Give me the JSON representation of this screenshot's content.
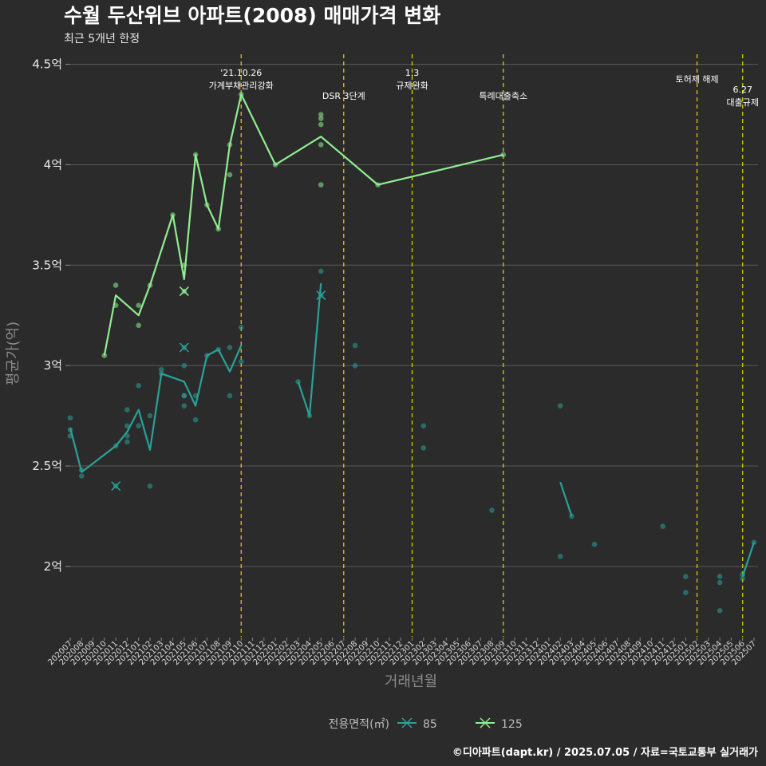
{
  "chart_data": {
    "type": "line",
    "title": "수월 두산위브 아파트(2008) 매매가격 변화",
    "subtitle": "최근 5개년 한정",
    "xlabel": "거래년월",
    "ylabel": "평균가(억)",
    "ylim": [
      1.65,
      4.55
    ],
    "yticks": [
      {
        "value": 2.0,
        "label": "2억"
      },
      {
        "value": 2.5,
        "label": "2.5억"
      },
      {
        "value": 3.0,
        "label": "3억"
      },
      {
        "value": 3.5,
        "label": "3.5억"
      },
      {
        "value": 4.0,
        "label": "4억"
      },
      {
        "value": 4.5,
        "label": "4.5억"
      }
    ],
    "categories": [
      "202007",
      "202008",
      "202009",
      "202010",
      "202011",
      "202012",
      "202101",
      "202102",
      "202103",
      "202104",
      "202105",
      "202106",
      "202107",
      "202108",
      "202109",
      "202110",
      "202111",
      "202112",
      "202201",
      "202202",
      "202203",
      "202204",
      "202205",
      "202206",
      "202207",
      "202208",
      "202209",
      "202210",
      "202211",
      "202212",
      "202301",
      "202302",
      "202303",
      "202304",
      "202305",
      "202306",
      "202307",
      "202308",
      "202309",
      "202310",
      "202311",
      "202312",
      "202401",
      "202402",
      "202403",
      "202404",
      "202405",
      "202406",
      "202407",
      "202408",
      "202409",
      "202410",
      "202411",
      "202412",
      "202501",
      "202502",
      "202503",
      "202504",
      "202505",
      "202506",
      "202507"
    ],
    "events": [
      {
        "month": "202110",
        "label": "'21.10.26\n가계부채관리강화"
      },
      {
        "month": "202207",
        "label": "DSR 3단계"
      },
      {
        "month": "202301",
        "label": "1.3\n규제완화"
      },
      {
        "month": "202309",
        "label": "특례대출축소"
      },
      {
        "month": "202502",
        "label": "토허제 해제"
      },
      {
        "month": "202506",
        "label": "6.27\n대출규제"
      }
    ],
    "legend": {
      "title": "전용면적(㎡)",
      "position": "bottom"
    },
    "series": [
      {
        "name": "85",
        "color": "#2aa198",
        "line": [
          {
            "segment": [
              [
                "202007",
                2.69
              ],
              [
                "202008",
                2.47
              ],
              [
                "202011",
                2.6
              ],
              [
                "202012",
                2.67
              ],
              [
                "202101",
                2.78
              ],
              [
                "202102",
                2.58
              ],
              [
                "202103",
                2.96
              ],
              [
                "202105",
                2.92
              ],
              [
                "202106",
                2.8
              ],
              [
                "202107",
                3.05
              ],
              [
                "202108",
                3.08
              ],
              [
                "202109",
                2.97
              ],
              [
                "202110",
                3.1
              ]
            ]
          },
          {
            "segment": [
              [
                "202203",
                2.92
              ],
              [
                "202204",
                2.75
              ],
              [
                "202205",
                3.41
              ]
            ]
          },
          {
            "segment": [
              [
                "202402",
                2.42
              ],
              [
                "202403",
                2.25
              ]
            ]
          },
          {
            "segment": [
              [
                "202506",
                1.95
              ],
              [
                "202507",
                2.12
              ]
            ]
          }
        ],
        "points": [
          [
            "202007",
            2.74
          ],
          [
            "202007",
            2.65
          ],
          [
            "202007",
            2.68
          ],
          [
            "202008",
            2.45
          ],
          [
            "202008",
            2.48
          ],
          [
            "202011",
            2.6
          ],
          [
            "202012",
            2.78
          ],
          [
            "202012",
            2.7
          ],
          [
            "202012",
            2.62
          ],
          [
            "202012",
            2.65
          ],
          [
            "202101",
            2.9
          ],
          [
            "202101",
            2.7
          ],
          [
            "202102",
            2.75
          ],
          [
            "202102",
            2.4
          ],
          [
            "202103",
            2.98
          ],
          [
            "202103",
            2.96
          ],
          [
            "202105",
            3.0
          ],
          [
            "202105",
            2.85
          ],
          [
            "202105",
            2.8
          ],
          [
            "202105",
            2.85
          ],
          [
            "202106",
            2.73
          ],
          [
            "202106",
            2.85
          ],
          [
            "202107",
            3.05
          ],
          [
            "202108",
            3.08
          ],
          [
            "202109",
            3.09
          ],
          [
            "202109",
            2.85
          ],
          [
            "202110",
            3.19
          ],
          [
            "202110",
            3.02
          ],
          [
            "202203",
            2.92
          ],
          [
            "202204",
            2.75
          ],
          [
            "202205",
            3.47
          ],
          [
            "202208",
            3.1
          ],
          [
            "202208",
            3.0
          ],
          [
            "202302",
            2.7
          ],
          [
            "202302",
            2.59
          ],
          [
            "202308",
            2.28
          ],
          [
            "202402",
            2.8
          ],
          [
            "202402",
            2.05
          ],
          [
            "202403",
            2.25
          ],
          [
            "202405",
            2.11
          ],
          [
            "202411",
            2.2
          ],
          [
            "202501",
            1.95
          ],
          [
            "202501",
            1.87
          ],
          [
            "202504",
            1.95
          ],
          [
            "202504",
            1.92
          ],
          [
            "202504",
            1.78
          ],
          [
            "202506",
            1.96
          ],
          [
            "202506",
            1.94
          ],
          [
            "202507",
            2.12
          ]
        ],
        "crosses": [
          [
            "202011",
            2.4
          ],
          [
            "202105",
            3.09
          ],
          [
            "202205",
            3.35
          ]
        ]
      },
      {
        "name": "125",
        "color": "#90ee90",
        "line": [
          {
            "segment": [
              [
                "202010",
                3.05
              ],
              [
                "202011",
                3.35
              ],
              [
                "202101",
                3.25
              ],
              [
                "202102",
                3.4
              ],
              [
                "202104",
                3.75
              ],
              [
                "202105",
                3.43
              ],
              [
                "202106",
                4.05
              ],
              [
                "202107",
                3.8
              ],
              [
                "202108",
                3.68
              ],
              [
                "202109",
                4.1
              ],
              [
                "202110",
                4.35
              ],
              [
                "202201",
                4.0
              ],
              [
                "202205",
                4.14
              ],
              [
                "202210",
                3.9
              ],
              [
                "202309",
                4.05
              ]
            ]
          }
        ],
        "points": [
          [
            "202010",
            3.05
          ],
          [
            "202011",
            3.4
          ],
          [
            "202011",
            3.3
          ],
          [
            "202101",
            3.3
          ],
          [
            "202101",
            3.2
          ],
          [
            "202102",
            3.4
          ],
          [
            "202104",
            3.75
          ],
          [
            "202105",
            3.5
          ],
          [
            "202106",
            4.05
          ],
          [
            "202107",
            3.8
          ],
          [
            "202108",
            3.68
          ],
          [
            "202109",
            4.1
          ],
          [
            "202109",
            3.95
          ],
          [
            "202110",
            4.35
          ],
          [
            "202201",
            4.0
          ],
          [
            "202205",
            4.25
          ],
          [
            "202205",
            4.23
          ],
          [
            "202205",
            4.2
          ],
          [
            "202205",
            4.1
          ],
          [
            "202205",
            3.9
          ],
          [
            "202210",
            3.9
          ],
          [
            "202309",
            4.05
          ]
        ],
        "crosses": [
          [
            "202105",
            3.37
          ]
        ]
      }
    ]
  },
  "caption": "©디아파트(dapt.kr) / 2025.07.05 / 자료=국토교통부 실거래가"
}
